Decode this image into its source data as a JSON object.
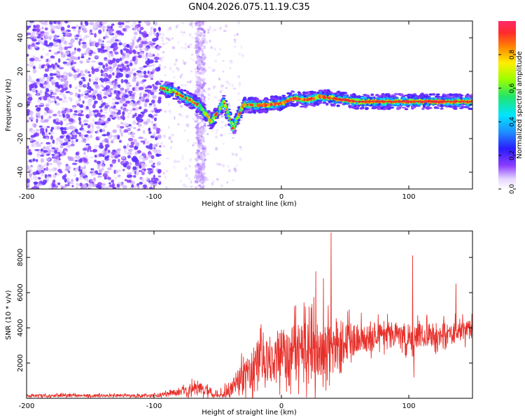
{
  "page_title": "GN04.2026.075.11.19.C35",
  "colors": {
    "axes": "#000000",
    "snr_line": "#e8302a",
    "scatter_purple": "#6a1bd6",
    "ridge_hot": "#e03030"
  },
  "chart_data": [
    {
      "type": "heatmap",
      "title": "GN04.2026.075.11.19.C35",
      "xlabel": "Height of straight line (km)",
      "ylabel": "Frequency (Hz)",
      "xlim": [
        -200,
        150
      ],
      "ylim": [
        -50,
        50
      ],
      "xticks": [
        -200,
        -100,
        0,
        100
      ],
      "yticks": [
        -40,
        -20,
        0,
        20,
        40
      ],
      "colorbar": {
        "label": "Normalized spectral amplitude",
        "range": [
          0,
          1
        ],
        "ticks": [
          0,
          0.2,
          0.4,
          0.6,
          0.8
        ],
        "tick_labels": [
          "0.0",
          "0.2",
          "0.4",
          "0.6",
          "0.8"
        ]
      },
      "ridge": {
        "x": [
          -95,
          -85,
          -75,
          -65,
          -55,
          -45,
          -38,
          -30,
          -20,
          -10,
          0,
          10,
          20,
          30,
          40,
          60,
          80,
          100,
          120,
          150
        ],
        "y": [
          10,
          8,
          4,
          0,
          -10,
          2,
          -14,
          0,
          0,
          0,
          1,
          4,
          3,
          5,
          4,
          2,
          2,
          2,
          2,
          2
        ],
        "amplitude_range": [
          0.2,
          0.95
        ]
      },
      "noise_region_x": [
        -200,
        -95
      ],
      "noise_band_x": [
        -67,
        -60
      ]
    },
    {
      "type": "line",
      "xlabel": "Height of straight line (km)",
      "ylabel": "SNR (10 * v/v)",
      "xlim": [
        -200,
        150
      ],
      "ylim": [
        0,
        9500
      ],
      "xticks": [
        -200,
        -100,
        0,
        100
      ],
      "yticks": [
        2000,
        4000,
        6000,
        8000
      ],
      "series": [
        {
          "name": "SNR",
          "envelope_x": [
            -200,
            -100,
            -80,
            -70,
            -60,
            -52,
            -40,
            -35,
            -25,
            -20,
            -10,
            0,
            10,
            20,
            30,
            40,
            60,
            80,
            100,
            120,
            150
          ],
          "baseline": [
            150,
            150,
            350,
            600,
            500,
            300,
            600,
            900,
            1500,
            2000,
            2300,
            2600,
            2600,
            2500,
            2600,
            3000,
            3400,
            3500,
            3500,
            3600,
            3900
          ],
          "amplitude": [
            150,
            150,
            300,
            600,
            500,
            300,
            900,
            1200,
            1800,
            2200,
            2300,
            2600,
            2800,
            3200,
            3300,
            2600,
            1500,
            1300,
            1200,
            1200,
            900
          ],
          "peaks": [
            {
              "x": 39,
              "y": 9400
            },
            {
              "x": 103,
              "y": 8100
            },
            {
              "x": 27,
              "y": 7200
            },
            {
              "x": 33,
              "y": 6800
            },
            {
              "x": 137,
              "y": 6500
            },
            {
              "x": 104,
              "y": 1200
            }
          ]
        }
      ]
    }
  ]
}
